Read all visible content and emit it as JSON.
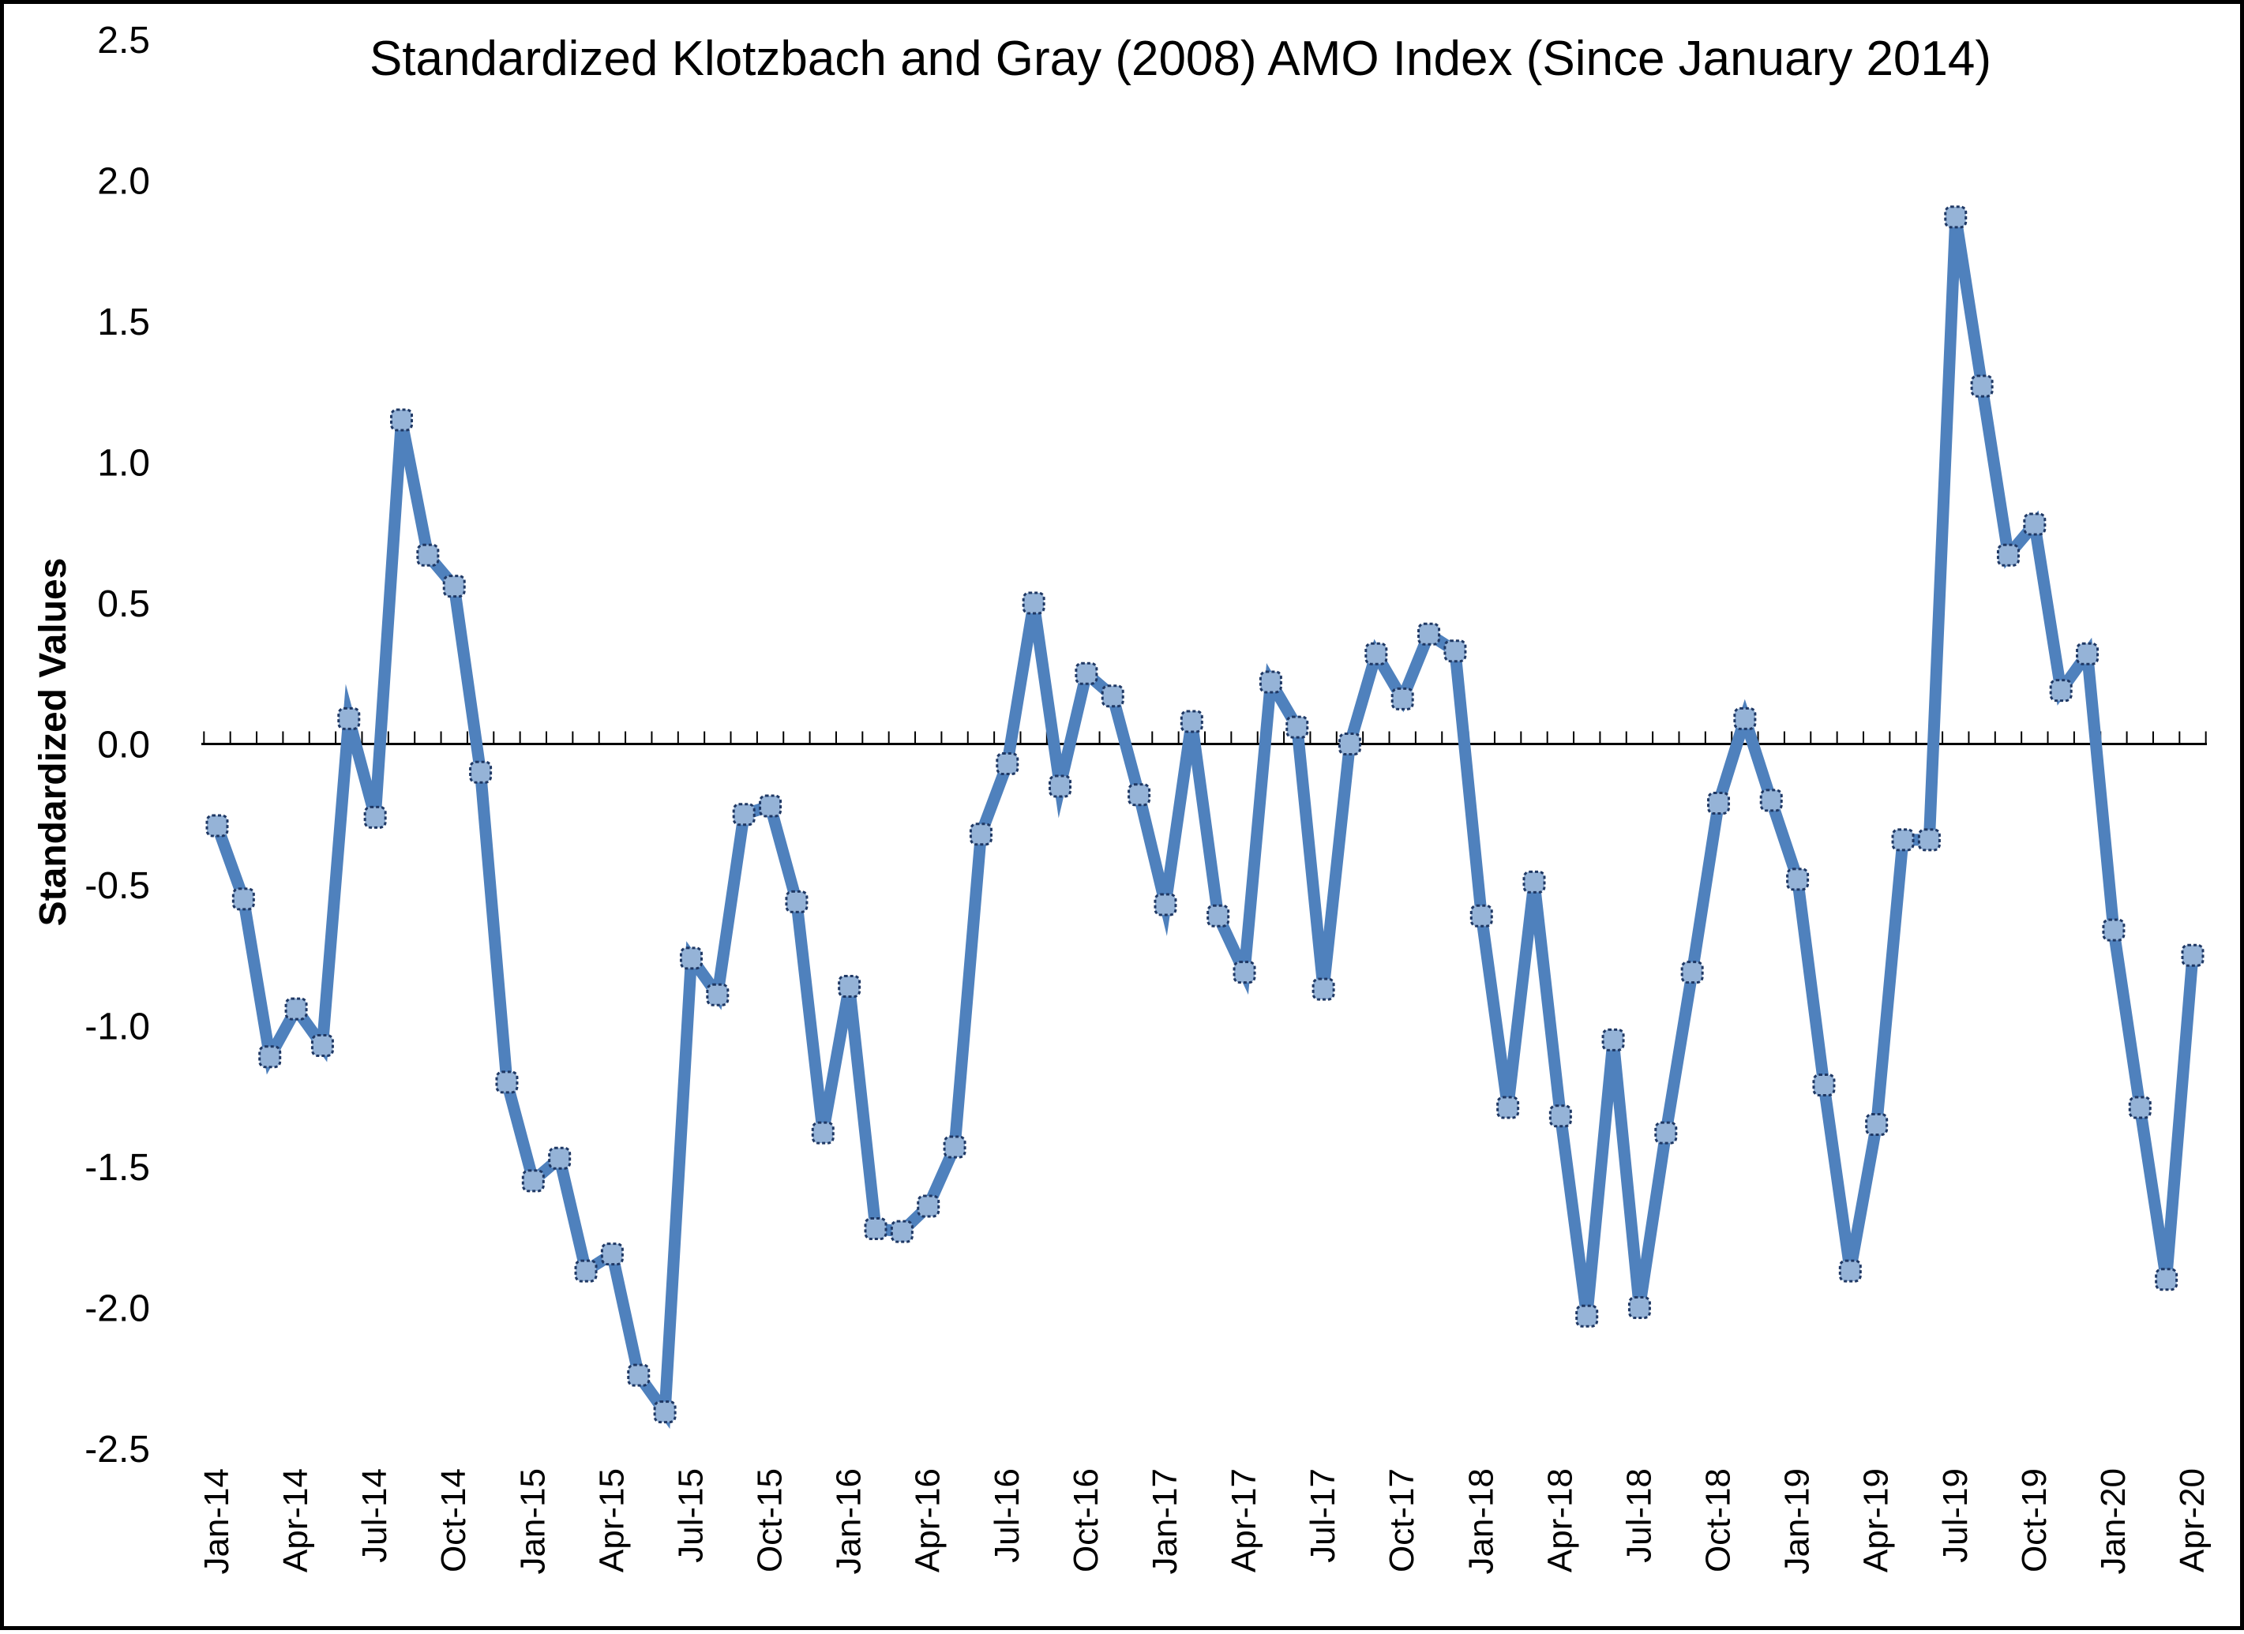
{
  "chart_data": {
    "type": "line",
    "title": "Standardized Klotzbach and Gray (2008)  AMO Index (Since January 2014)",
    "ylabel": "Standardized  Values",
    "xlabel": "",
    "ylim": [
      -2.5,
      2.5
    ],
    "yticks": [
      "2.5",
      "2.0",
      "1.5",
      "1.0",
      "0.5",
      "0.0",
      "-0.5",
      "-1.0",
      "-1.5",
      "-2.0",
      "-2.5"
    ],
    "ytick_values": [
      2.5,
      2.0,
      1.5,
      1.0,
      0.5,
      0.0,
      -0.5,
      -1.0,
      -1.5,
      -2.0,
      -2.5
    ],
    "x": [
      "Jan-14",
      "Feb-14",
      "Mar-14",
      "Apr-14",
      "May-14",
      "Jun-14",
      "Jul-14",
      "Aug-14",
      "Sep-14",
      "Oct-14",
      "Nov-14",
      "Dec-14",
      "Jan-15",
      "Feb-15",
      "Mar-15",
      "Apr-15",
      "May-15",
      "Jun-15",
      "Jul-15",
      "Aug-15",
      "Sep-15",
      "Oct-15",
      "Nov-15",
      "Dec-15",
      "Jan-16",
      "Feb-16",
      "Mar-16",
      "Apr-16",
      "May-16",
      "Jun-16",
      "Jul-16",
      "Aug-16",
      "Sep-16",
      "Oct-16",
      "Nov-16",
      "Dec-16",
      "Jan-17",
      "Feb-17",
      "Mar-17",
      "Apr-17",
      "May-17",
      "Jun-17",
      "Jul-17",
      "Aug-17",
      "Sep-17",
      "Oct-17",
      "Nov-17",
      "Dec-17",
      "Jan-18",
      "Feb-18",
      "Mar-18",
      "Apr-18",
      "May-18",
      "Jun-18",
      "Jul-18",
      "Aug-18",
      "Sep-18",
      "Oct-18",
      "Nov-18",
      "Dec-18",
      "Jan-19",
      "Feb-19",
      "Mar-19",
      "Apr-19",
      "May-19",
      "Jun-19",
      "Jul-19",
      "Aug-19",
      "Sep-19",
      "Oct-19",
      "Nov-19",
      "Dec-19",
      "Jan-20",
      "Feb-20",
      "Mar-20",
      "Apr-20"
    ],
    "xticks": [
      "Jan-14",
      "Apr-14",
      "Jul-14",
      "Oct-14",
      "Jan-15",
      "Apr-15",
      "Jul-15",
      "Oct-15",
      "Jan-16",
      "Apr-16",
      "Jul-16",
      "Oct-16",
      "Jan-17",
      "Apr-17",
      "Jul-17",
      "Oct-17",
      "Jan-18",
      "Apr-18",
      "Jul-18",
      "Oct-18",
      "Jan-19",
      "Apr-19",
      "Jul-19",
      "Oct-19",
      "Jan-20",
      "Apr-20"
    ],
    "series": [
      {
        "values": [
          -0.29,
          -0.55,
          -1.11,
          -0.94,
          -1.07,
          0.09,
          -0.26,
          1.15,
          0.67,
          0.56,
          -0.1,
          -1.2,
          -1.55,
          -1.47,
          -1.87,
          -1.81,
          -2.24,
          -2.37,
          -0.76,
          -0.89,
          -0.25,
          -0.22,
          -0.56,
          -1.38,
          -0.86,
          -1.72,
          -1.73,
          -1.64,
          -1.43,
          -0.32,
          -0.07,
          0.5,
          -0.15,
          0.25,
          0.17,
          -0.18,
          -0.57,
          0.08,
          -0.61,
          -0.81,
          0.22,
          0.06,
          -0.87,
          0.0,
          0.32,
          0.16,
          0.39,
          0.33,
          -0.61,
          -1.29,
          -0.49,
          -1.32,
          -2.03,
          -1.05,
          -2.0,
          -1.38,
          -0.81,
          -0.21,
          0.09,
          -0.2,
          -0.48,
          -1.21,
          -1.87,
          -1.35,
          -0.34,
          -0.34,
          1.87,
          1.27,
          0.67,
          0.78,
          0.19,
          0.32,
          -0.66,
          -1.29,
          -1.9,
          -0.75
        ]
      }
    ],
    "colors": {
      "line": "#4f81bd",
      "marker_fill": "#95b3d7",
      "marker_edge": "#1f3864",
      "axis": "#000000"
    },
    "grid": false,
    "legend": "none"
  }
}
